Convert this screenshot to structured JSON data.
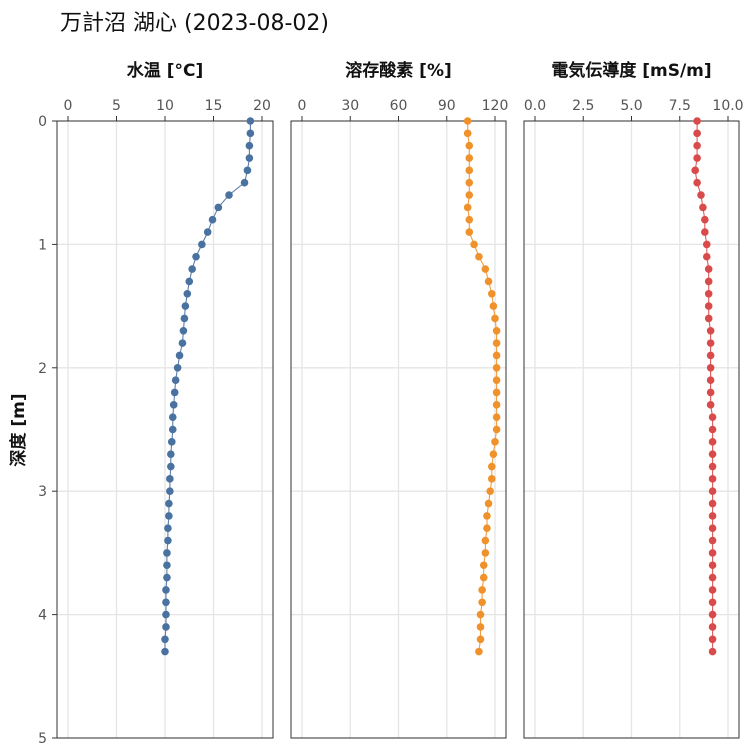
{
  "title": "万計沼 湖心 (2023-08-02)",
  "chart_data": {
    "type": "scatter",
    "title": "万計沼 湖心 (2023-08-02)",
    "ylabel": "深度 [m]",
    "ylim": [
      0,
      5
    ],
    "y_reversed": true,
    "yticks": [
      0,
      1,
      2,
      3,
      4,
      5
    ],
    "grid": true,
    "depth": [
      0.0,
      0.1,
      0.2,
      0.3,
      0.4,
      0.5,
      0.6,
      0.7,
      0.8,
      0.9,
      1.0,
      1.1,
      1.2,
      1.3,
      1.4,
      1.5,
      1.6,
      1.7,
      1.8,
      1.9,
      2.0,
      2.1,
      2.2,
      2.3,
      2.4,
      2.5,
      2.6,
      2.7,
      2.8,
      2.9,
      3.0,
      3.1,
      3.2,
      3.3,
      3.4,
      3.5,
      3.6,
      3.7,
      3.8,
      3.9,
      4.0,
      4.1,
      4.2,
      4.3
    ],
    "panels": [
      {
        "name": "水温 [°C]",
        "color": "#4a72a0",
        "xlim": [
          0,
          20
        ],
        "xticks": [
          "0",
          "5",
          "10",
          "15",
          "20"
        ],
        "xtick_values": [
          0,
          5,
          10,
          15,
          20
        ],
        "values": [
          18.8,
          18.8,
          18.7,
          18.7,
          18.5,
          18.2,
          16.6,
          15.5,
          14.9,
          14.4,
          13.8,
          13.2,
          12.8,
          12.5,
          12.3,
          12.1,
          12.0,
          11.9,
          11.8,
          11.5,
          11.3,
          11.1,
          11.0,
          10.9,
          10.8,
          10.8,
          10.7,
          10.6,
          10.6,
          10.5,
          10.5,
          10.4,
          10.4,
          10.3,
          10.3,
          10.2,
          10.2,
          10.2,
          10.1,
          10.1,
          10.1,
          10.1,
          10.0,
          10.0
        ]
      },
      {
        "name": "溶存酸素 [%]",
        "color": "#f0922b",
        "xlim": [
          0,
          120
        ],
        "xticks": [
          "0",
          "30",
          "60",
          "90",
          "120"
        ],
        "xtick_values": [
          0,
          30,
          60,
          90,
          120
        ],
        "values": [
          103,
          103,
          104,
          104,
          104,
          104,
          104,
          103,
          104,
          104,
          107,
          110,
          114,
          116,
          118,
          119,
          120,
          121,
          121,
          121,
          121,
          121,
          121,
          121,
          121,
          121,
          120,
          119,
          118,
          118,
          117,
          116,
          115,
          115,
          114,
          114,
          113,
          113,
          112,
          112,
          111,
          111,
          111,
          110
        ]
      },
      {
        "name": "電気伝導度 [mS/m]",
        "color": "#d94b4b",
        "xlim": [
          0,
          10
        ],
        "xticks": [
          "0.0",
          "2.5",
          "5.0",
          "7.5",
          "10.0"
        ],
        "xtick_values": [
          0,
          2.5,
          5.0,
          7.5,
          10.0
        ],
        "values": [
          8.4,
          8.4,
          8.4,
          8.4,
          8.3,
          8.4,
          8.6,
          8.7,
          8.8,
          8.8,
          8.9,
          8.9,
          9.0,
          9.0,
          9.0,
          9.0,
          9.0,
          9.1,
          9.1,
          9.1,
          9.1,
          9.1,
          9.1,
          9.1,
          9.2,
          9.2,
          9.2,
          9.2,
          9.2,
          9.2,
          9.2,
          9.2,
          9.2,
          9.2,
          9.2,
          9.2,
          9.2,
          9.2,
          9.2,
          9.2,
          9.2,
          9.2,
          9.2,
          9.2
        ]
      }
    ]
  }
}
